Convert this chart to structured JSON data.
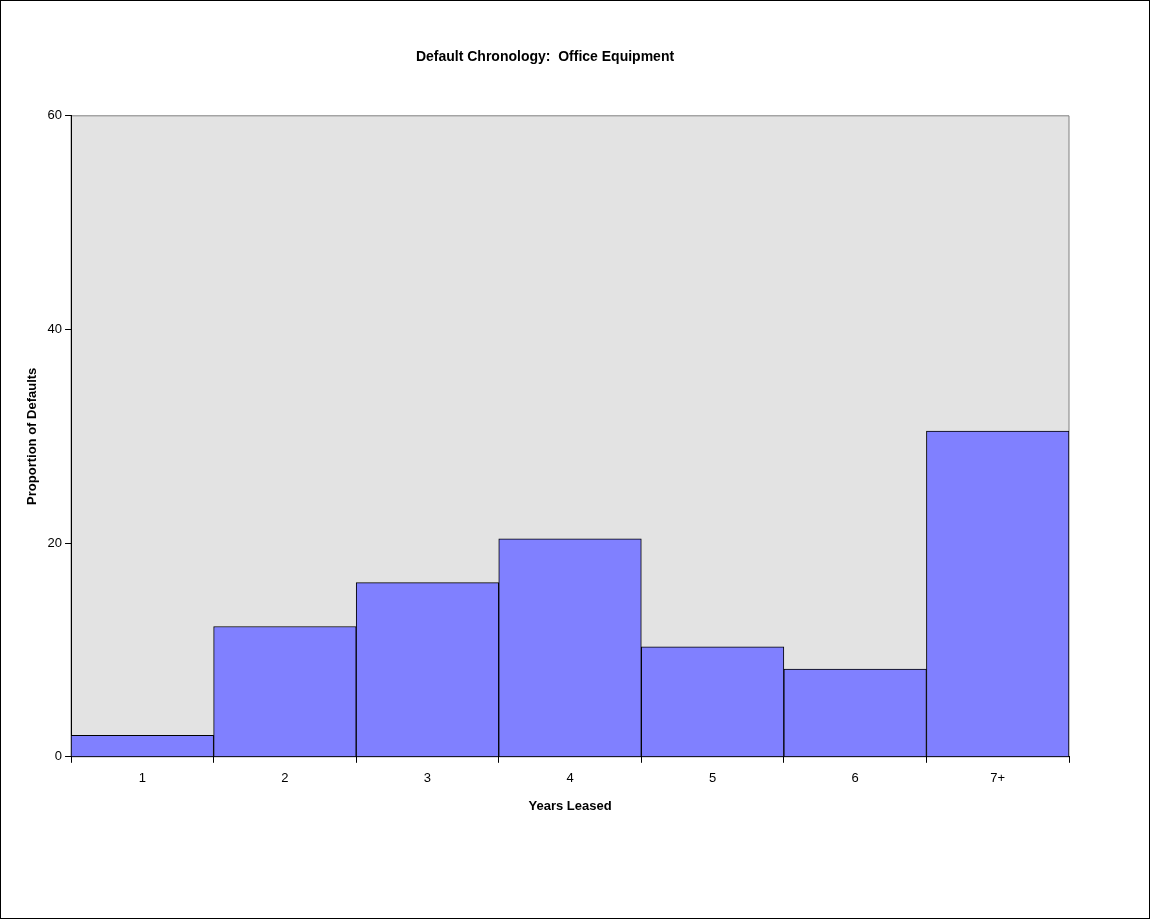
{
  "chart_data": {
    "type": "bar",
    "title": "Default Chronology:  Office Equipment",
    "xlabel": "Years Leased",
    "ylabel": "Proportion of Defaults",
    "categories": [
      "1",
      "2",
      "3",
      "4",
      "5",
      "6",
      "7+"
    ],
    "values": [
      2,
      12.2,
      16.3,
      20.4,
      10.3,
      8.2,
      30.5
    ],
    "color": "#8080ff",
    "ylim": [
      0,
      60
    ],
    "yticks": [
      0,
      20,
      40,
      60
    ],
    "grid": false,
    "legend": false
  }
}
